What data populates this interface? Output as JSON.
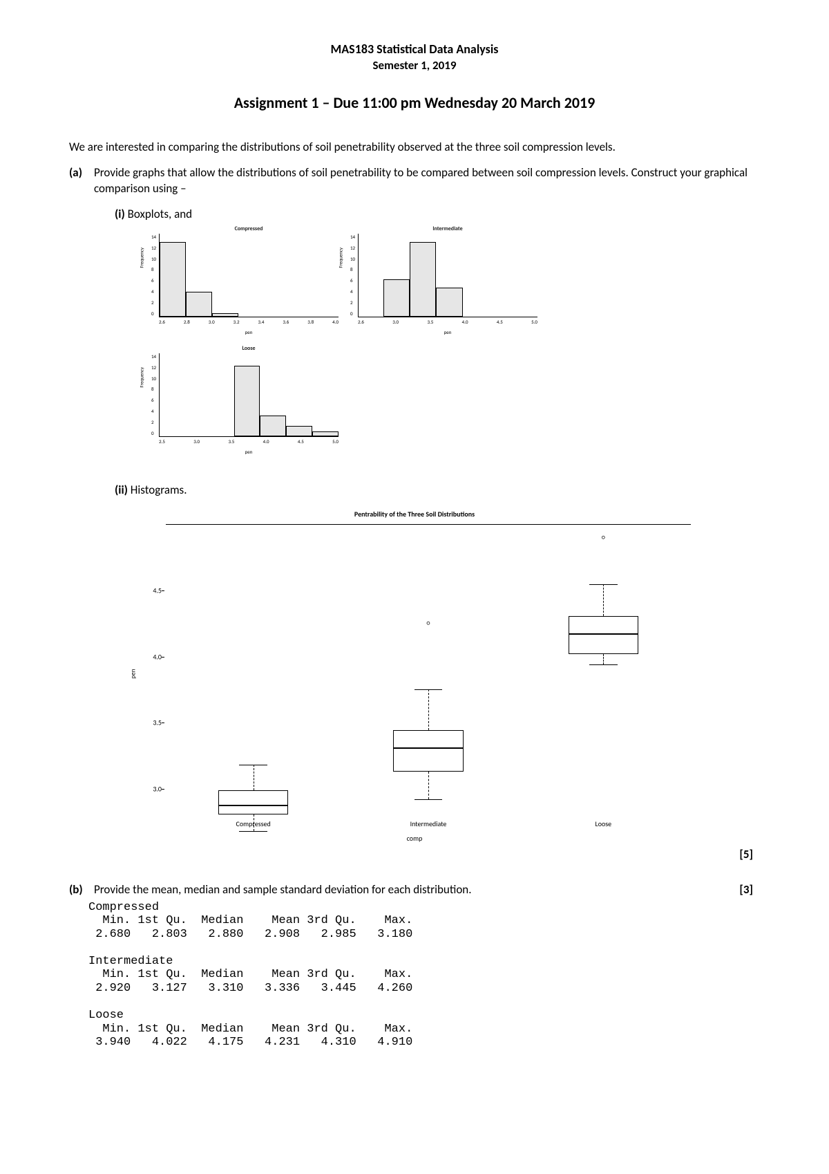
{
  "header": {
    "course": "MAS183 Statistical Data Analysis",
    "semester": "Semester 1, 2019",
    "assignment": "Assignment 1 – Due 11:00 pm Wednesday 20 March 2019"
  },
  "intro": "We are interested in comparing the distributions of soil penetrability observed at the three soil compression levels.",
  "qa": {
    "label": "(a)",
    "text": "Provide graphs that allow the distributions of soil penetrability to be compared between soil compression levels. Construct your graphical comparison using –",
    "i_label": "(i) ",
    "i_text": "Boxplots, and",
    "ii_label": "(ii) ",
    "ii_text": "Histograms.",
    "marks": "[5]"
  },
  "qb": {
    "label": "(b)",
    "text": "Provide the mean, median and sample standard deviation for each distribution.",
    "marks": "[3]"
  },
  "histograms": {
    "panels": [
      {
        "title": "Compressed",
        "ylabel": "Frequency",
        "xlabel": "pen",
        "yticks": [
          "14",
          "12",
          "10",
          "8",
          "6",
          "4",
          "2",
          "0"
        ],
        "xticks": [
          "2.6",
          "2.8",
          "3.0",
          "3.2",
          "3.4",
          "3.6",
          "3.8",
          "4.0"
        ],
        "bars": [
          90,
          30,
          4,
          0,
          0,
          0,
          0
        ],
        "bar_color": "#e6e6e6"
      },
      {
        "title": "Intermediate",
        "ylabel": "Frequency",
        "xlabel": "pen",
        "yticks": [
          "14",
          "12",
          "10",
          "8",
          "6",
          "4",
          "2",
          "0"
        ],
        "xticks": [
          "2.6",
          "3.0",
          "3.5",
          "4.0",
          "4.5",
          "5.0"
        ],
        "bars": [
          0,
          45,
          90,
          35,
          0,
          0,
          0
        ],
        "bar_color": "#e6e6e6"
      },
      {
        "title": "Loose",
        "ylabel": "Frequency",
        "xlabel": "pen",
        "yticks": [
          "14",
          "12",
          "10",
          "8",
          "6",
          "4",
          "2",
          "0"
        ],
        "xticks": [
          "2.5",
          "3.0",
          "3.5",
          "4.0",
          "4.5",
          "5.0"
        ],
        "bars": [
          0,
          0,
          0,
          85,
          25,
          12,
          6
        ],
        "bar_color": "#e6e6e6"
      }
    ]
  },
  "boxplot": {
    "title": "Pentrability of the Three Soil Distributions",
    "ylabel": "pen",
    "xlabel": "comp",
    "ylim": [
      2.8,
      5.0
    ],
    "yticks": [
      "4.5",
      "4.0",
      "3.5",
      "3.0"
    ],
    "ytick_pos": [
      0.227,
      0.455,
      0.682,
      0.909
    ],
    "categories": [
      "Compressed",
      "Intermediate",
      "Loose"
    ],
    "boxes": [
      {
        "min": 2.68,
        "q1": 2.803,
        "median": 2.88,
        "q3": 2.985,
        "max": 3.18,
        "outliers": []
      },
      {
        "min": 2.92,
        "q1": 3.127,
        "median": 3.31,
        "q3": 3.445,
        "max": 3.75,
        "outliers": [
          4.26
        ]
      },
      {
        "min": 3.94,
        "q1": 4.022,
        "median": 4.175,
        "q3": 4.31,
        "max": 4.55,
        "outliers": [
          4.91
        ]
      }
    ]
  },
  "stats": {
    "header_row": "  Min. 1st Qu.  Median    Mean 3rd Qu.    Max.",
    "groups": [
      {
        "name": "Compressed",
        "values": " 2.680   2.803   2.880   2.908   2.985   3.180"
      },
      {
        "name": "Intermediate",
        "values": " 2.920   3.127   3.310   3.336   3.445   4.260"
      },
      {
        "name": "Loose",
        "values": " 3.940   4.022   4.175   4.231   4.310   4.910"
      }
    ]
  }
}
